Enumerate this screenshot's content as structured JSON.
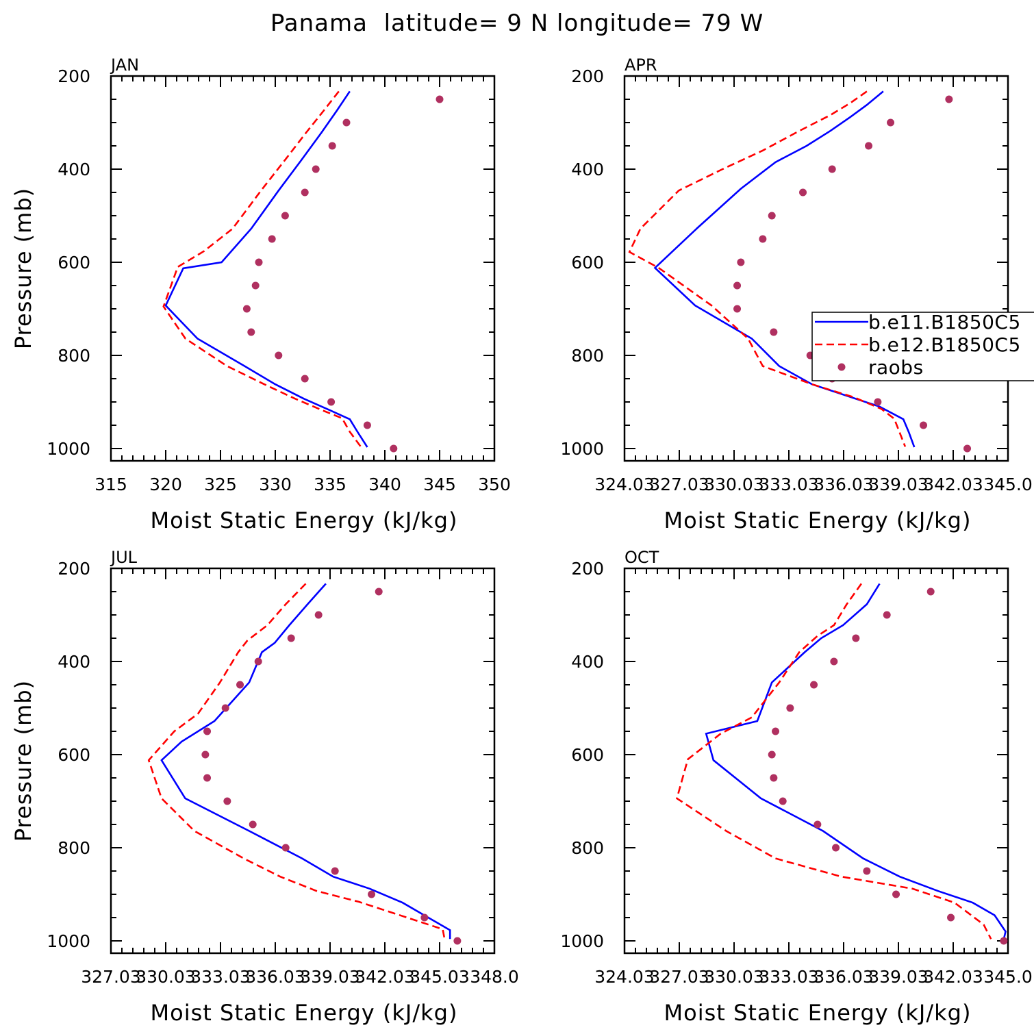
{
  "figure_title": "Panama  latitude= 9 N longitude= 79 W",
  "legend": {
    "placement": "right-middle of APR panel, extends past right edge (text clipped)",
    "entries": [
      {
        "label": "b.e11.B1850C5",
        "style": "solid",
        "color": "#0000ff"
      },
      {
        "label": "b.e12.B1850C5",
        "style": "dashed",
        "color": "#ff0000"
      },
      {
        "label": "raobs",
        "style": "dots",
        "color": "#b03060"
      }
    ]
  },
  "chart_data": [
    {
      "type": "line",
      "panel_title": "JAN",
      "xlabel": "Moist Static Energy (kJ/kg)",
      "ylabel": "Pressure (mb)",
      "xlim": [
        315,
        350
      ],
      "ylim": [
        200,
        1000
      ],
      "y_inverted": true,
      "xticks": [
        315,
        320,
        325,
        330,
        335,
        340,
        345,
        350
      ],
      "xtick_labels": [
        "315",
        "320",
        "325",
        "330",
        "335",
        "340",
        "345",
        "350"
      ],
      "yticks": [
        200,
        400,
        600,
        800,
        1000
      ],
      "ytick_labels": [
        "200",
        "400",
        "600",
        "800",
        "1000"
      ],
      "legend": false,
      "series": [
        {
          "name": "b.e11.B1850C5",
          "style": "solid",
          "color": "#0000ff",
          "x": [
            336.8,
            335.6,
            334.2,
            332.4,
            330.3,
            327.8,
            325.1,
            321.6,
            320.0,
            322.9,
            327.2,
            330.0,
            332.6,
            335.0,
            336.8,
            337.5,
            338.4
          ],
          "y": [
            233,
            275,
            322,
            380,
            446,
            528,
            600,
            613,
            693,
            764,
            823,
            862,
            893,
            918,
            937,
            964,
            997
          ]
        },
        {
          "name": "b.e12.B1850C5",
          "style": "dashed",
          "color": "#ff0000",
          "x": [
            335.8,
            334.4,
            332.8,
            330.9,
            328.7,
            326.1,
            323.5,
            321.1,
            319.8,
            321.8,
            325.6,
            329.0,
            331.8,
            334.3,
            336.1,
            336.8,
            337.8
          ],
          "y": [
            233,
            275,
            322,
            380,
            446,
            528,
            576,
            610,
            695,
            764,
            823,
            862,
            893,
            918,
            935,
            964,
            996
          ]
        },
        {
          "name": "raobs",
          "style": "dots",
          "color": "#b03060",
          "x": [
            345.0,
            336.5,
            335.2,
            333.7,
            332.7,
            330.9,
            329.7,
            328.5,
            328.2,
            327.4,
            327.8,
            330.3,
            332.7,
            335.1,
            338.4,
            340.8
          ],
          "y": [
            250,
            300,
            350,
            400,
            450,
            500,
            550,
            600,
            650,
            700,
            750,
            800,
            850,
            900,
            950,
            1000
          ]
        }
      ]
    },
    {
      "type": "line",
      "panel_title": "APR",
      "xlabel": "Moist Static Energy (kJ/kg)",
      "ylabel": "",
      "xlim": [
        324.03,
        345.03
      ],
      "ylim": [
        200,
        1000
      ],
      "y_inverted": true,
      "xticks": [
        324.03,
        327.03,
        330.03,
        333.03,
        336.03,
        339.03,
        342.03,
        345.03
      ],
      "xtick_labels": [
        "324.03",
        "327.03",
        "330.03",
        "333.03",
        "336.03",
        "339.03",
        "342.03",
        "345.0"
      ],
      "yticks": [
        200,
        400,
        600,
        800,
        1000
      ],
      "ytick_labels": [
        "200",
        "400",
        "600",
        "800",
        "1000"
      ],
      "legend": true,
      "series": [
        {
          "name": "b.e11.B1850C5",
          "style": "solid",
          "color": "#0000ff",
          "x": [
            338.2,
            337.3,
            336.4,
            335.3,
            334.0,
            332.3,
            330.4,
            328.0,
            325.7,
            327.9,
            331.0,
            332.5,
            334.3,
            338.0,
            339.3,
            339.6,
            339.9
          ],
          "y": [
            233,
            262,
            288,
            318,
            350,
            385,
            442,
            527,
            612,
            693,
            764,
            823,
            862,
            910,
            937,
            965,
            997
          ]
        },
        {
          "name": "b.e12.B1850C5",
          "style": "dashed",
          "color": "#ff0000",
          "x": [
            337.3,
            336.4,
            335.3,
            333.6,
            331.6,
            329.4,
            327.0,
            324.9,
            324.3,
            325.9,
            328.8,
            330.8,
            331.6,
            334.3,
            336.6,
            338.1,
            338.8,
            339.4
          ],
          "y": [
            233,
            258,
            284,
            318,
            360,
            400,
            446,
            528,
            578,
            612,
            693,
            764,
            823,
            862,
            890,
            915,
            936,
            996
          ]
        },
        {
          "name": "raobs",
          "style": "dots",
          "color": "#b03060",
          "x": [
            341.8,
            338.6,
            337.4,
            335.4,
            333.8,
            332.1,
            331.6,
            330.4,
            330.2,
            330.2,
            332.2,
            334.2,
            335.4,
            337.9,
            340.4,
            342.8
          ],
          "y": [
            250,
            300,
            350,
            400,
            450,
            500,
            550,
            600,
            650,
            700,
            750,
            800,
            850,
            900,
            950,
            1000
          ]
        }
      ]
    },
    {
      "type": "line",
      "panel_title": "JUL",
      "xlabel": "Moist Static Energy (kJ/kg)",
      "ylabel": "Pressure (mb)",
      "xlim": [
        327.03,
        348.03
      ],
      "ylim": [
        200,
        1000
      ],
      "y_inverted": true,
      "xticks": [
        327.03,
        330.03,
        333.03,
        336.03,
        339.03,
        342.03,
        345.03,
        348.03
      ],
      "xtick_labels": [
        "327.03",
        "330.03",
        "333.03",
        "336.03",
        "339.03",
        "342.03",
        "345.03",
        "348.0"
      ],
      "yticks": [
        200,
        400,
        600,
        800,
        1000
      ],
      "ytick_labels": [
        "200",
        "400",
        "600",
        "800",
        "1000"
      ],
      "legend": false,
      "series": [
        {
          "name": "b.e11.B1850C5",
          "style": "solid",
          "color": "#0000ff",
          "x": [
            338.8,
            337.8,
            336.8,
            336.0,
            335.3,
            334.6,
            332.7,
            330.9,
            329.8,
            331.1,
            334.6,
            337.5,
            339.2,
            341.2,
            343.0,
            345.6,
            345.6
          ],
          "y": [
            233,
            277,
            322,
            360,
            380,
            445,
            528,
            572,
            612,
            694,
            764,
            823,
            862,
            888,
            918,
            977,
            996
          ]
        },
        {
          "name": "b.e12.B1850C5",
          "style": "dashed",
          "color": "#ff0000",
          "x": [
            337.7,
            336.6,
            335.6,
            334.5,
            334.0,
            333.0,
            331.8,
            330.5,
            329.1,
            329.8,
            331.6,
            334.3,
            336.3,
            338.3,
            340.6,
            345.2,
            345.3
          ],
          "y": [
            233,
            277,
            322,
            355,
            380,
            445,
            512,
            550,
            612,
            694,
            764,
            823,
            862,
            893,
            916,
            975,
            996
          ]
        },
        {
          "name": "raobs",
          "style": "dots",
          "color": "#b03060",
          "x": [
            341.7,
            338.4,
            336.9,
            335.1,
            334.1,
            333.3,
            332.3,
            332.2,
            332.3,
            333.4,
            334.8,
            336.6,
            339.3,
            341.3,
            344.2,
            346.0
          ],
          "y": [
            250,
            300,
            350,
            400,
            450,
            500,
            550,
            600,
            650,
            700,
            750,
            800,
            850,
            900,
            950,
            1000
          ]
        }
      ]
    },
    {
      "type": "line",
      "panel_title": "OCT",
      "xlabel": "Moist Static Energy (kJ/kg)",
      "ylabel": "",
      "xlim": [
        324.03,
        345.03
      ],
      "ylim": [
        200,
        1000
      ],
      "y_inverted": true,
      "xticks": [
        324.03,
        327.03,
        330.03,
        333.03,
        336.03,
        339.03,
        342.03,
        345.03
      ],
      "xtick_labels": [
        "324.03",
        "327.03",
        "330.03",
        "333.03",
        "336.03",
        "339.03",
        "342.03",
        "345.0"
      ],
      "yticks": [
        200,
        400,
        600,
        800,
        1000
      ],
      "ytick_labels": [
        "200",
        "400",
        "600",
        "800",
        "1000"
      ],
      "legend": false,
      "series": [
        {
          "name": "b.e11.B1850C5",
          "style": "solid",
          "color": "#0000ff",
          "x": [
            338.0,
            337.3,
            336.0,
            334.8,
            333.9,
            332.1,
            331.3,
            328.5,
            328.9,
            331.5,
            334.9,
            337.1,
            339.1,
            341.2,
            343.1,
            344.3,
            344.9,
            344.8
          ],
          "y": [
            233,
            277,
            322,
            350,
            380,
            445,
            528,
            555,
            612,
            694,
            764,
            823,
            862,
            893,
            918,
            945,
            980,
            996
          ]
        },
        {
          "name": "b.e12.B1850C5",
          "style": "dashed",
          "color": "#ff0000",
          "x": [
            337.0,
            336.2,
            335.5,
            334.6,
            333.6,
            332.5,
            331.0,
            329.3,
            327.5,
            326.9,
            329.6,
            332.3,
            335.9,
            339.8,
            342.1,
            343.7,
            344.1
          ],
          "y": [
            233,
            277,
            322,
            345,
            380,
            445,
            520,
            555,
            610,
            694,
            764,
            823,
            862,
            888,
            918,
            965,
            996
          ]
        },
        {
          "name": "raobs",
          "style": "dots",
          "color": "#b03060",
          "x": [
            340.8,
            338.4,
            336.7,
            335.5,
            334.4,
            333.1,
            332.3,
            332.1,
            332.2,
            332.7,
            334.6,
            335.6,
            337.3,
            338.9,
            341.9,
            344.8
          ],
          "y": [
            250,
            300,
            350,
            400,
            450,
            500,
            550,
            600,
            650,
            700,
            750,
            800,
            850,
            900,
            950,
            1000
          ]
        }
      ]
    }
  ]
}
